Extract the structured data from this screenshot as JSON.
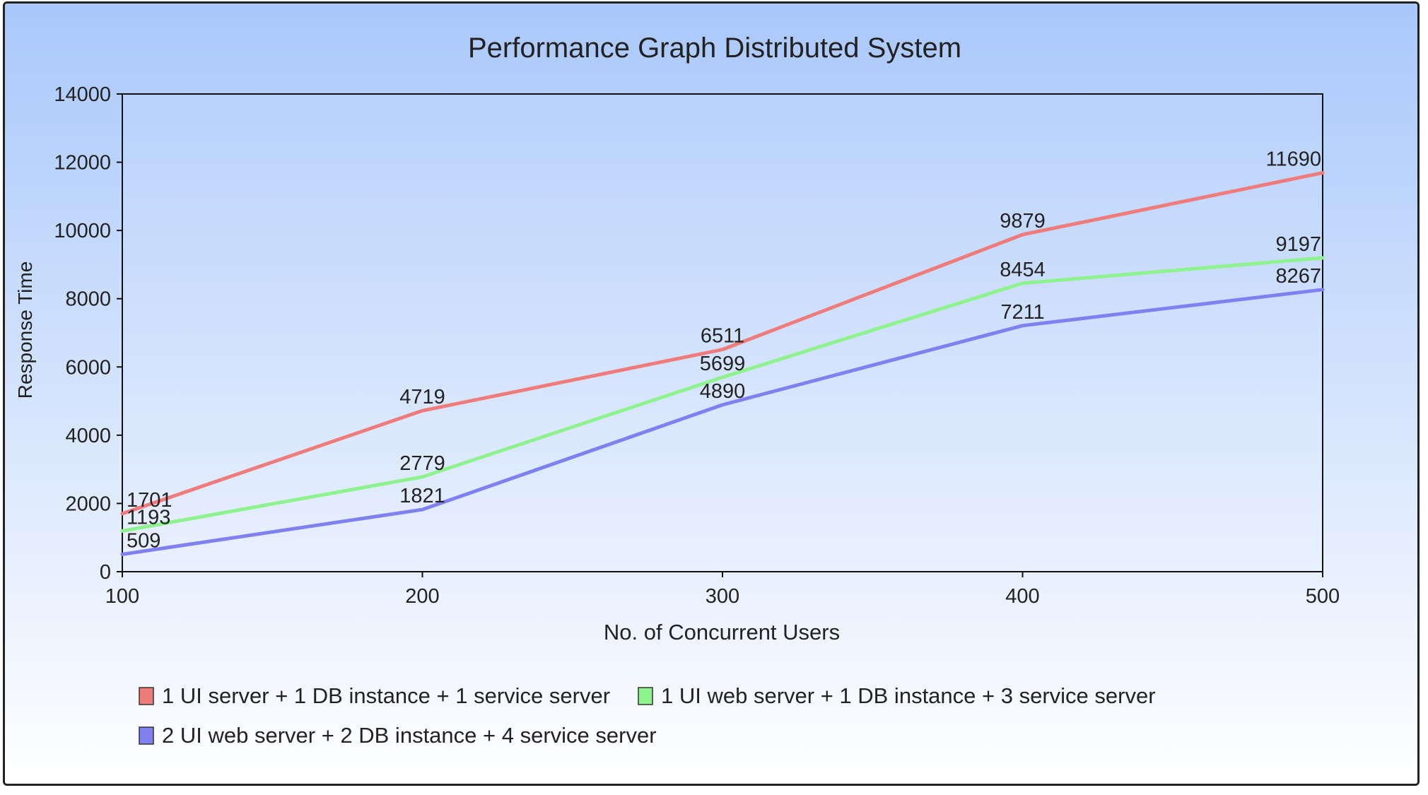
{
  "chart_data": {
    "type": "line",
    "title": "Performance Graph Distributed System",
    "xlabel": "No. of Concurrent Users",
    "ylabel": "Response Time",
    "x": [
      100,
      200,
      300,
      400,
      500
    ],
    "x_ticks": [
      "100",
      "200",
      "300",
      "400",
      "500"
    ],
    "y_ticks": [
      "0",
      "2000",
      "4000",
      "6000",
      "8000",
      "10000",
      "12000",
      "14000"
    ],
    "ylim": [
      0,
      14000
    ],
    "xlim": [
      100,
      500
    ],
    "grid": false,
    "legend_position": "bottom",
    "background_gradient": [
      "#a9c8fb",
      "#ffffff"
    ],
    "series": [
      {
        "name": "1 UI server + 1 DB instance + 1 service server",
        "color": "#f07b7b",
        "values": [
          1701,
          4719,
          6511,
          9879,
          11690
        ]
      },
      {
        "name": "1 UI web server + 1 DB instance + 3 service server",
        "color": "#8ef28e",
        "values": [
          1193,
          2779,
          5699,
          8454,
          9197
        ]
      },
      {
        "name": "2 UI web server + 2 DB instance + 4 service server",
        "color": "#8080f0",
        "values": [
          509,
          1821,
          4890,
          7211,
          8267
        ]
      }
    ]
  }
}
